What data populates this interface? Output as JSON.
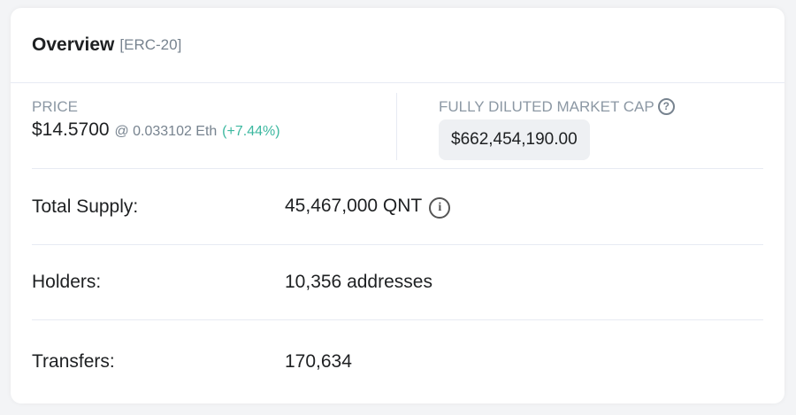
{
  "header": {
    "title": "Overview",
    "subtitle": "[ERC-20]"
  },
  "price": {
    "label": "PRICE",
    "value": "$14.5700",
    "eth": "@ 0.033102 Eth",
    "change": "(+7.44%)",
    "change_color": "#3cb8a0"
  },
  "market_cap": {
    "label": "FULLY DILUTED MARKET CAP",
    "help_icon": "question-circle-icon",
    "value": "$662,454,190.00"
  },
  "rows": [
    {
      "label": "Total Supply:",
      "value": "45,467,000 QNT",
      "icon": "info-circle-icon"
    },
    {
      "label": "Holders:",
      "value": "10,356 addresses"
    },
    {
      "label": "Transfers:",
      "value": "170,634"
    }
  ]
}
